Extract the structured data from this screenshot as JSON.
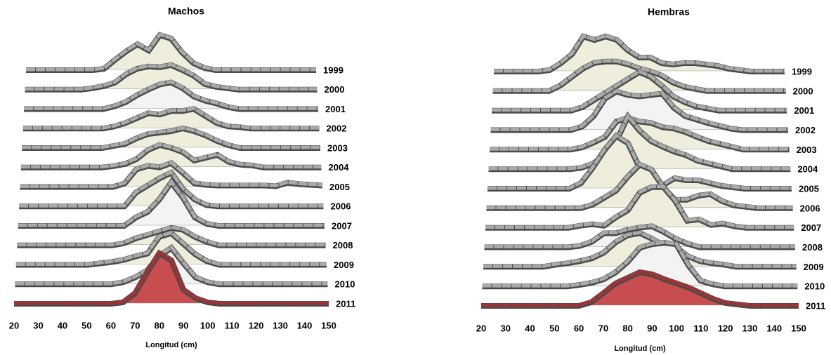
{
  "chart_data": [
    {
      "type": "ridgeline",
      "title": "Machos",
      "x_label": "Longitud (cm)",
      "x": [
        20,
        25,
        30,
        35,
        40,
        45,
        50,
        55,
        60,
        65,
        70,
        75,
        80,
        85,
        90,
        95,
        100,
        105,
        110,
        115,
        120,
        125,
        130,
        135,
        140,
        145,
        150
      ],
      "xlim": [
        20,
        150
      ],
      "xticks": [
        20,
        30,
        40,
        50,
        60,
        70,
        80,
        90,
        100,
        110,
        120,
        130,
        140,
        150
      ],
      "series": [
        {
          "name": "1999",
          "color": "#efeddc",
          "line_color": "#a9a9a9",
          "values": [
            0,
            0,
            0,
            0,
            0,
            0,
            0,
            2,
            15,
            27,
            37,
            28,
            50,
            45,
            25,
            10,
            3,
            0,
            0,
            0,
            0,
            0,
            0,
            0,
            0,
            0,
            0
          ]
        },
        {
          "name": "2000",
          "color": "#efeddc",
          "line_color": "#a9a9a9",
          "values": [
            0,
            0,
            0,
            0,
            0,
            0,
            2,
            5,
            10,
            22,
            30,
            33,
            32,
            35,
            28,
            20,
            8,
            4,
            2,
            0,
            0,
            0,
            0,
            0,
            0,
            0,
            0
          ]
        },
        {
          "name": "2001",
          "color": "#f3f3f3",
          "line_color": "#a9a9a9",
          "values": [
            0,
            0,
            0,
            0,
            0,
            0,
            0,
            0,
            4,
            10,
            20,
            28,
            35,
            38,
            30,
            18,
            12,
            8,
            3,
            0,
            0,
            0,
            0,
            0,
            0,
            0,
            0
          ]
        },
        {
          "name": "2002",
          "color": "#efeddc",
          "line_color": "#a9a9a9",
          "values": [
            0,
            0,
            0,
            0,
            0,
            0,
            0,
            0,
            3,
            8,
            15,
            22,
            20,
            25,
            25,
            28,
            18,
            8,
            3,
            2,
            0,
            0,
            0,
            0,
            0,
            0,
            0
          ]
        },
        {
          "name": "2003",
          "color": "#efeddc",
          "line_color": "#a9a9a9",
          "values": [
            0,
            0,
            0,
            0,
            0,
            0,
            0,
            0,
            3,
            6,
            14,
            20,
            22,
            24,
            28,
            24,
            18,
            10,
            4,
            0,
            0,
            0,
            0,
            0,
            0,
            0,
            0
          ]
        },
        {
          "name": "2004",
          "color": "#efeddc",
          "line_color": "#a9a9a9",
          "values": [
            0,
            0,
            0,
            0,
            0,
            0,
            0,
            0,
            2,
            5,
            12,
            25,
            32,
            28,
            22,
            10,
            14,
            18,
            8,
            4,
            3,
            0,
            0,
            0,
            0,
            0,
            0
          ]
        },
        {
          "name": "2005",
          "color": "#efeddc",
          "line_color": "#a9a9a9",
          "values": [
            0,
            0,
            0,
            0,
            0,
            0,
            0,
            0,
            0,
            5,
            25,
            30,
            28,
            34,
            20,
            5,
            3,
            2,
            2,
            2,
            2,
            2,
            1,
            6,
            4,
            3,
            2
          ]
        },
        {
          "name": "2006",
          "color": "#efeddc",
          "line_color": "#a9a9a9",
          "values": [
            0,
            0,
            0,
            0,
            0,
            0,
            0,
            0,
            0,
            0,
            20,
            30,
            40,
            48,
            25,
            10,
            2,
            0,
            0,
            0,
            0,
            0,
            0,
            0,
            0,
            0,
            0
          ]
        },
        {
          "name": "2007",
          "color": "#f3f3f3",
          "line_color": "#a9a9a9",
          "values": [
            0,
            0,
            0,
            0,
            0,
            0,
            0,
            0,
            0,
            0,
            12,
            20,
            38,
            62,
            40,
            12,
            3,
            0,
            0,
            0,
            0,
            0,
            0,
            0,
            0,
            0,
            0
          ]
        },
        {
          "name": "2008",
          "color": "#efeddc",
          "line_color": "#a9a9a9",
          "values": [
            0,
            0,
            0,
            0,
            0,
            0,
            0,
            0,
            0,
            3,
            10,
            15,
            20,
            25,
            22,
            12,
            5,
            0,
            0,
            0,
            0,
            0,
            0,
            0,
            0,
            0,
            0
          ]
        },
        {
          "name": "2009",
          "color": "#efeddc",
          "line_color": "#a9a9a9",
          "values": [
            0,
            0,
            0,
            0,
            0,
            0,
            0,
            2,
            4,
            7,
            12,
            16,
            40,
            45,
            30,
            15,
            5,
            0,
            0,
            0,
            0,
            0,
            0,
            0,
            0,
            0,
            0
          ]
        },
        {
          "name": "2010",
          "color": "#f3f3f3",
          "line_color": "#a9a9a9",
          "values": [
            0,
            0,
            0,
            0,
            0,
            0,
            0,
            0,
            0,
            3,
            10,
            20,
            40,
            52,
            30,
            10,
            3,
            0,
            0,
            0,
            0,
            0,
            0,
            0,
            0,
            0,
            0
          ]
        },
        {
          "name": "2011",
          "color": "#c84d4f",
          "line_color": "#9e3436",
          "values": [
            0,
            0,
            0,
            0,
            0,
            0,
            0,
            0,
            0,
            2,
            15,
            45,
            72,
            62,
            20,
            8,
            2,
            0,
            0,
            0,
            0,
            0,
            0,
            0,
            0,
            0,
            0
          ]
        }
      ]
    },
    {
      "type": "ridgeline",
      "title": "Hembras",
      "x_label": "Longitud (cm)",
      "x": [
        20,
        25,
        30,
        35,
        40,
        45,
        50,
        55,
        60,
        65,
        70,
        75,
        80,
        85,
        90,
        95,
        100,
        105,
        110,
        115,
        120,
        125,
        130,
        135,
        140,
        145,
        150
      ],
      "xlim": [
        20,
        150
      ],
      "xticks": [
        20,
        30,
        40,
        50,
        60,
        70,
        80,
        90,
        100,
        110,
        120,
        130,
        140,
        150
      ],
      "series": [
        {
          "name": "1999",
          "color": "#efeddc",
          "line_color": "#a9a9a9",
          "values": [
            0,
            0,
            0,
            0,
            0,
            2,
            12,
            25,
            50,
            45,
            50,
            45,
            30,
            20,
            20,
            12,
            10,
            12,
            12,
            10,
            8,
            4,
            2,
            0,
            0,
            0,
            0
          ]
        },
        {
          "name": "2000",
          "color": "#efeddc",
          "line_color": "#a9a9a9",
          "values": [
            0,
            0,
            0,
            0,
            0,
            0,
            8,
            20,
            32,
            40,
            42,
            42,
            38,
            32,
            28,
            22,
            12,
            6,
            3,
            0,
            0,
            0,
            0,
            0,
            0,
            0,
            0
          ]
        },
        {
          "name": "2001",
          "color": "#efeddc",
          "line_color": "#a9a9a9",
          "values": [
            0,
            0,
            0,
            0,
            0,
            0,
            0,
            0,
            5,
            15,
            25,
            35,
            45,
            55,
            48,
            35,
            20,
            12,
            6,
            3,
            0,
            0,
            0,
            0,
            0,
            0,
            0
          ]
        },
        {
          "name": "2002",
          "color": "#f3f3f3",
          "line_color": "#a9a9a9",
          "values": [
            0,
            0,
            0,
            0,
            0,
            0,
            0,
            0,
            5,
            20,
            45,
            55,
            50,
            48,
            50,
            52,
            32,
            20,
            15,
            10,
            6,
            2,
            0,
            0,
            0,
            0,
            0
          ]
        },
        {
          "name": "2003",
          "color": "#efeddc",
          "line_color": "#a9a9a9",
          "values": [
            0,
            0,
            0,
            0,
            0,
            0,
            0,
            0,
            3,
            10,
            18,
            40,
            45,
            40,
            38,
            32,
            30,
            25,
            18,
            12,
            8,
            4,
            0,
            0,
            0,
            0,
            0
          ]
        },
        {
          "name": "2004",
          "color": "#efeddc",
          "line_color": "#a9a9a9",
          "values": [
            0,
            0,
            0,
            0,
            0,
            0,
            0,
            0,
            2,
            8,
            20,
            40,
            75,
            55,
            40,
            32,
            25,
            20,
            12,
            8,
            4,
            0,
            0,
            0,
            0,
            0,
            0
          ]
        },
        {
          "name": "2005",
          "color": "#efeddc",
          "line_color": "#a9a9a9",
          "values": [
            0,
            0,
            0,
            0,
            0,
            0,
            0,
            0,
            8,
            30,
            55,
            75,
            65,
            30,
            15,
            5,
            15,
            12,
            12,
            8,
            4,
            2,
            0,
            0,
            0,
            0,
            0
          ]
        },
        {
          "name": "2006",
          "color": "#efeddc",
          "line_color": "#a9a9a9",
          "values": [
            0,
            0,
            0,
            0,
            0,
            0,
            0,
            0,
            0,
            5,
            15,
            25,
            45,
            62,
            55,
            30,
            12,
            12,
            18,
            20,
            10,
            4,
            2,
            0,
            0,
            0,
            0
          ]
        },
        {
          "name": "2007",
          "color": "#efeddc",
          "line_color": "#a9a9a9",
          "values": [
            0,
            0,
            0,
            0,
            0,
            0,
            0,
            0,
            3,
            5,
            3,
            15,
            25,
            50,
            58,
            58,
            38,
            10,
            12,
            4,
            6,
            2,
            0,
            0,
            0,
            0,
            0
          ]
        },
        {
          "name": "2008",
          "color": "#f3f3f3",
          "line_color": "#a9a9a9",
          "values": [
            0,
            0,
            0,
            0,
            0,
            0,
            0,
            0,
            2,
            8,
            20,
            20,
            25,
            28,
            30,
            22,
            12,
            5,
            0,
            0,
            0,
            0,
            0,
            0,
            0,
            0,
            0
          ]
        },
        {
          "name": "2009",
          "color": "#efeddc",
          "line_color": "#a9a9a9",
          "values": [
            0,
            0,
            0,
            0,
            0,
            0,
            3,
            5,
            8,
            12,
            20,
            35,
            45,
            48,
            40,
            30,
            28,
            15,
            8,
            5,
            3,
            0,
            0,
            0,
            0,
            0,
            0
          ]
        },
        {
          "name": "2010",
          "color": "#f3f3f3",
          "line_color": "#a9a9a9",
          "values": [
            0,
            0,
            0,
            0,
            0,
            0,
            0,
            0,
            2,
            5,
            10,
            20,
            35,
            55,
            60,
            62,
            60,
            30,
            8,
            3,
            0,
            0,
            0,
            0,
            0,
            0,
            0
          ]
        },
        {
          "name": "2011",
          "color": "#c84d4f",
          "line_color": "#9e3436",
          "values": [
            0,
            0,
            0,
            0,
            0,
            0,
            0,
            0,
            0,
            5,
            18,
            32,
            40,
            48,
            45,
            38,
            32,
            26,
            18,
            10,
            4,
            2,
            0,
            0,
            0,
            0,
            0
          ]
        }
      ]
    }
  ]
}
